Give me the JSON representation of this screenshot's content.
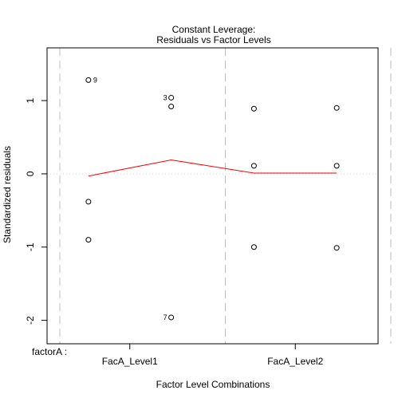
{
  "chart_data": {
    "type": "scatter",
    "title": "Constant Leverage:",
    "subtitle": "Residuals vs Factor Levels",
    "xlabel": "Factor Level Combinations",
    "ylabel": "Standardized residuals",
    "factor_label": "factorA :",
    "levels": [
      "FacA_Level1",
      "FacA_Level2"
    ],
    "yticks": [
      -2,
      -1,
      0,
      1
    ],
    "xlim": [
      0.0,
      4.0
    ],
    "ylim": [
      -2.32,
      1.72
    ],
    "level_boundaries": [
      0.0,
      2.0,
      4.0
    ],
    "level_label_positions": [
      1.0,
      3.0
    ],
    "points": [
      {
        "x": 0.5,
        "y": 1.28,
        "label": "9"
      },
      {
        "x": 0.5,
        "y": -0.38,
        "label": ""
      },
      {
        "x": 0.5,
        "y": -0.9,
        "label": ""
      },
      {
        "x": 1.5,
        "y": 1.04,
        "label": "3"
      },
      {
        "x": 1.5,
        "y": 0.92,
        "label": ""
      },
      {
        "x": 1.5,
        "y": -1.96,
        "label": "7"
      },
      {
        "x": 2.5,
        "y": 0.89,
        "label": ""
      },
      {
        "x": 2.5,
        "y": 0.11,
        "label": ""
      },
      {
        "x": 2.5,
        "y": -1.0,
        "label": ""
      },
      {
        "x": 3.5,
        "y": 0.9,
        "label": ""
      },
      {
        "x": 3.5,
        "y": 0.11,
        "label": ""
      },
      {
        "x": 3.5,
        "y": -1.01,
        "label": ""
      }
    ],
    "smooth_line": {
      "color": "#ff0000",
      "x": [
        0.5,
        1.5,
        2.5,
        3.5
      ],
      "y": [
        -0.03,
        0.19,
        0.01,
        0.01
      ]
    },
    "reference_line_y": 0,
    "grid": false,
    "colors": {
      "points": "#000000",
      "smooth": "#ff0000",
      "reference": "#d3d3d3",
      "boundaries": "#bebebe"
    }
  }
}
